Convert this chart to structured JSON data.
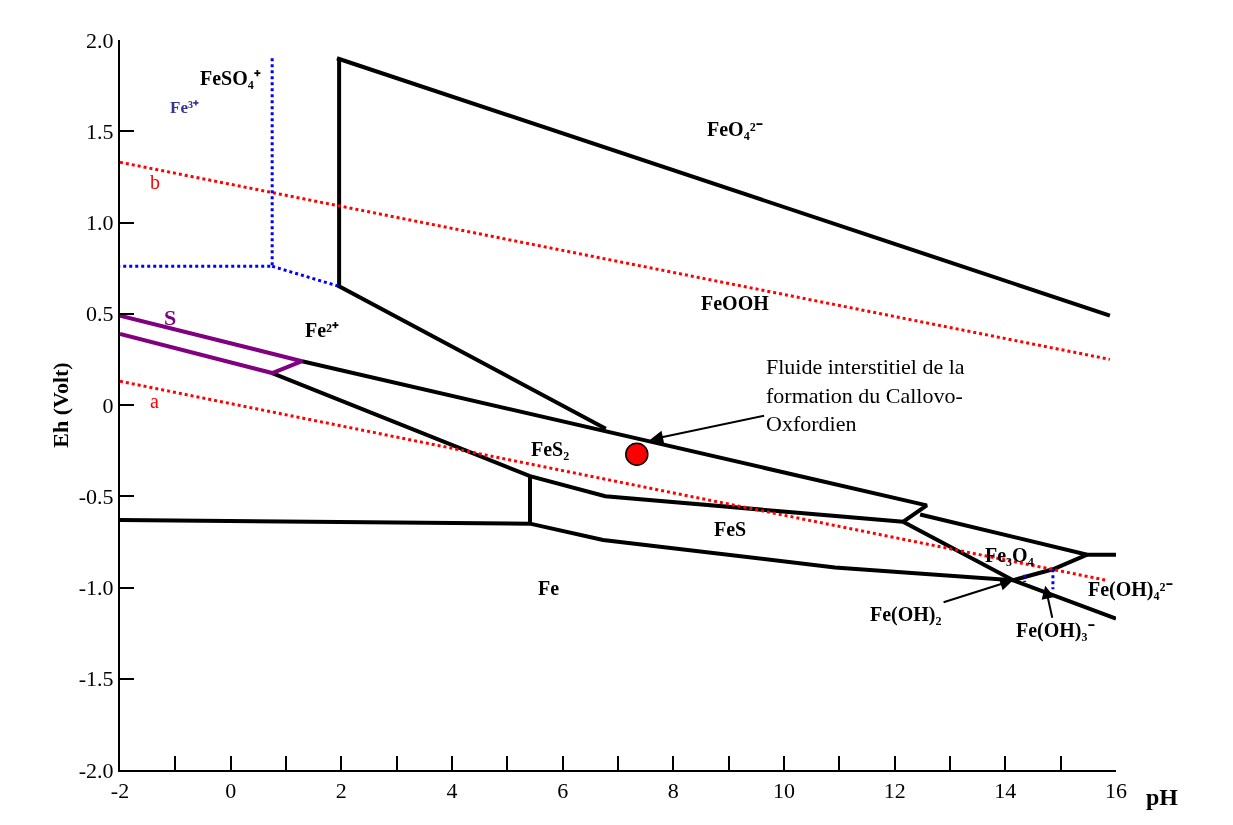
{
  "chart_data": {
    "type": "line",
    "xlabel": "pH",
    "ylabel": "Eh (Volt)",
    "xlim": [
      -2,
      16
    ],
    "ylim": [
      -2,
      2
    ],
    "xticks": [
      -2,
      {
        "value": -1,
        "label": null
      },
      0,
      {
        "value": 1,
        "label": null
      },
      2,
      {
        "value": 3,
        "label": null
      },
      4,
      {
        "value": 5,
        "label": null
      },
      6,
      {
        "value": 7,
        "label": null
      },
      8,
      {
        "value": 9,
        "label": null
      },
      10,
      {
        "value": 11,
        "label": null
      },
      12,
      {
        "value": 13,
        "label": null
      },
      14,
      {
        "value": 15,
        "label": null
      },
      16
    ],
    "yticks": [
      {
        "value": -2,
        "label": "-2.0"
      },
      {
        "value": -1.5,
        "label": "-1.5"
      },
      {
        "value": -1,
        "label": "-1.0"
      },
      {
        "value": -0.5,
        "label": "-0.5"
      },
      0,
      {
        "value": 0.5,
        "label": "0.5"
      },
      {
        "value": 1,
        "label": "1.0"
      },
      {
        "value": 1.5,
        "label": "1.5"
      },
      {
        "value": 2,
        "label": "2.0"
      }
    ],
    "series": [
      {
        "color": "#000000",
        "line_style": "solid",
        "x": [
          1.92,
          15.89
        ],
        "values": [
          1.9,
          0.49
        ]
      },
      {
        "color": "#000000",
        "line_style": "solid",
        "x": [
          1.96,
          1.96,
          6.78
        ],
        "values": [
          1.9,
          0.65,
          -0.13
        ]
      },
      {
        "color": "#000000",
        "line_style": "solid",
        "x": [
          1.29,
          12.58,
          12.15
        ],
        "values": [
          0.24,
          -0.55,
          -0.64
        ]
      },
      {
        "color": "#000000",
        "line_style": "solid",
        "x": [
          0.75,
          5.41,
          6.77,
          12.15,
          14.14,
          16
        ],
        "values": [
          0.175,
          -0.39,
          -0.5,
          -0.64,
          -0.96,
          -1.17
        ]
      },
      {
        "color": "#000000",
        "line_style": "solid",
        "x": [
          5.41,
          5.41
        ],
        "values": [
          -0.39,
          -0.65
        ]
      },
      {
        "color": "#000000",
        "line_style": "solid",
        "x": [
          -2,
          5.41,
          6.73,
          10.92,
          14.14,
          14.86,
          15.48
        ],
        "values": [
          -0.63,
          -0.65,
          -0.74,
          -0.89,
          -0.96,
          -0.9,
          -0.82
        ]
      },
      {
        "color": "#000000",
        "line_style": "solid",
        "x": [
          12.46,
          15.48,
          16
        ],
        "values": [
          -0.6,
          -0.82,
          -0.82
        ]
      },
      {
        "color": "#800080",
        "line_style": "solid",
        "x": [
          -2,
          1.29,
          0.75,
          -2
        ],
        "values": [
          0.49,
          0.24,
          0.175,
          0.39
        ]
      },
      {
        "color": "#ff0000",
        "line_style": "dotted",
        "x": [
          -2,
          15.89
        ],
        "values": [
          1.33,
          0.25
        ]
      },
      {
        "color": "#ff0000",
        "line_style": "dotted",
        "x": [
          -2,
          15.82
        ],
        "values": [
          0.13,
          -0.96
        ]
      },
      {
        "color": "#0000ff",
        "line_style": "dotted",
        "x": [
          0.75,
          0.75,
          -2
        ],
        "values": [
          1.9,
          0.76,
          0.76
        ]
      },
      {
        "color": "#0000ff",
        "line_style": "dotted",
        "x": [
          0.75,
          1.96
        ],
        "values": [
          0.76,
          0.65
        ]
      },
      {
        "color": "#0000ff",
        "line_style": "dotted",
        "x": [
          14.86,
          14.86
        ],
        "values": [
          -0.9,
          -1.01
        ]
      },
      {
        "color": "#0000ff",
        "line_style": "dotted",
        "x": [
          14.35,
          14.35
        ],
        "values": [
          -0.93,
          -0.97
        ]
      },
      {
        "type": "scatter",
        "color": "#ff0000",
        "marker": "circle",
        "x": [
          7.34
        ],
        "values": [
          -0.27
        ]
      }
    ],
    "annotations": [
      "FeO₄²⁻",
      "FeOOH",
      "FeSO₄⁺",
      "Fe³⁺",
      "b",
      "a",
      "S",
      "Fe²⁺",
      "FeS₂",
      "FeS",
      "Fe",
      "Fe₃O₄",
      "Fe(OH)₄²⁻",
      {
        "text": "Fe(OH)₂",
        "x": 14.14,
        "y": -0.96
      },
      {
        "text": "Fe(OH)₃⁻",
        "x": 14.72,
        "y": -0.99
      },
      {
        "text": "Fluide interstitiel de la\nformation du Callovo-\nOxfordien",
        "x": 7.58,
        "y": -0.19
      }
    ]
  }
}
